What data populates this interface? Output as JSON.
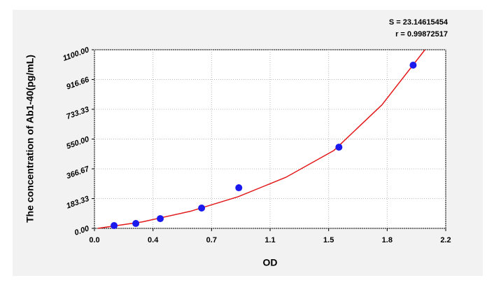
{
  "chart_data": {
    "type": "scatter",
    "annotations": [
      "S = 23.14615454",
      "r = 0.99872517"
    ],
    "x_label": "OD",
    "y_label": "The concentration of Ab1-40(pg/mL)",
    "xlim": [
      0,
      2.2
    ],
    "ylim": [
      0,
      1100
    ],
    "xticks": [
      {
        "value": 0,
        "label": "0.0"
      },
      {
        "value": 0.3667,
        "label": "0.4"
      },
      {
        "value": 0.7333,
        "label": "0.7"
      },
      {
        "value": 1.1,
        "label": "1.1"
      },
      {
        "value": 1.4667,
        "label": "1.5"
      },
      {
        "value": 1.8333,
        "label": "1.8"
      },
      {
        "value": 2.2,
        "label": "2.2"
      }
    ],
    "yticks": [
      {
        "value": 0,
        "label": "0.00"
      },
      183.33,
      366.67,
      {
        "value": 550,
        "label": "550.00"
      },
      733.33,
      916.66,
      {
        "value": 1100,
        "label": "1100.00"
      }
    ],
    "grid": true,
    "series": [
      {
        "color": "#1a1aee",
        "x": [
          0.123,
          0.259,
          0.412,
          0.671,
          0.904,
          1.531,
          1.996
        ],
        "values": [
          17,
          30,
          60,
          125,
          250,
          500,
          1005
        ]
      },
      {
        "color": "#e31a1c",
        "line": true,
        "x": [
          0.02,
          0.3,
          0.6,
          0.9,
          1.2,
          1.5,
          1.8,
          2.07
        ],
        "values": [
          0,
          40,
          105,
          195,
          315,
          480,
          760,
          1100
        ]
      }
    ]
  }
}
